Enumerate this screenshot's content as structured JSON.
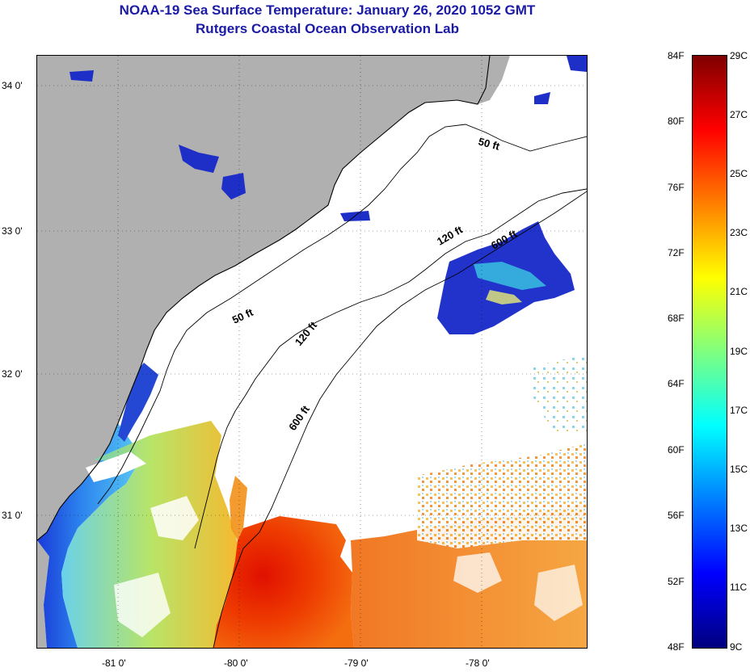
{
  "header": {
    "title": "NOAA-19 Sea Surface Temperature:  January 26, 2020 1052 GMT",
    "subtitle": "Rutgers Coastal Ocean Observation Lab"
  },
  "map": {
    "lat_labels": [
      "34 0'",
      "33 0'",
      "32 0'",
      "31 0'"
    ],
    "lon_labels": [
      "-81 0'",
      "-80 0'",
      "-79 0'",
      "-78 0'"
    ],
    "depth_contours": [
      {
        "label": "50 ft"
      },
      {
        "label": "120 ft"
      },
      {
        "label": "600 ft"
      },
      {
        "label": "50 ft"
      },
      {
        "label": "120 ft"
      },
      {
        "label": "600 ft"
      }
    ],
    "colors": {
      "land": "#b0b0b0",
      "cloud": "#ffffff",
      "coast": "#000000"
    }
  },
  "colorbar": {
    "fahrenheit": [
      "84F",
      "80F",
      "76F",
      "72F",
      "68F",
      "64F",
      "60F",
      "56F",
      "52F",
      "48F"
    ],
    "celsius": [
      "29C",
      "27C",
      "25C",
      "23C",
      "21C",
      "19C",
      "17C",
      "15C",
      "13C",
      "11C",
      "9C"
    ],
    "colors": [
      "#7f0000",
      "#ff0000",
      "#ff7f00",
      "#ffff00",
      "#7fff7f",
      "#00ffff",
      "#007fff",
      "#0000ff",
      "#00007f"
    ]
  }
}
